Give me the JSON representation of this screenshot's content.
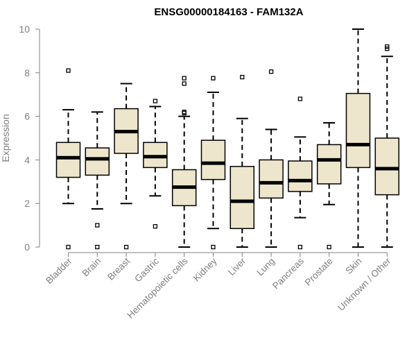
{
  "chart_data": {
    "type": "boxplot",
    "title": "ENSG00000184163 - FAM132A",
    "xlabel": "",
    "ylabel": "Expression",
    "ylim": [
      0,
      10
    ],
    "yticks": [
      0,
      2,
      4,
      6,
      8,
      10
    ],
    "colors": {
      "box_fill": "#ede6cc",
      "stroke": "#000000",
      "axis": "#808080",
      "tick_label": "#808080"
    },
    "categories": [
      "Bladder",
      "Brain",
      "Breast",
      "Gastric",
      "Hematopoietic cells",
      "Kidney",
      "Liver",
      "Lung",
      "Pancreas",
      "Prostate",
      "Skin",
      "Unknown / Other"
    ],
    "boxes": [
      {
        "name": "Bladder",
        "whisker_low": 2.0,
        "q1": 3.2,
        "median": 4.1,
        "q3": 4.8,
        "whisker_high": 6.3,
        "outliers": [
          0.0,
          8.1
        ]
      },
      {
        "name": "Brain",
        "whisker_low": 1.75,
        "q1": 3.3,
        "median": 4.05,
        "q3": 4.55,
        "whisker_high": 6.2,
        "outliers": [
          0.0,
          1.0
        ]
      },
      {
        "name": "Breast",
        "whisker_low": 2.0,
        "q1": 4.3,
        "median": 5.3,
        "q3": 6.35,
        "whisker_high": 7.5,
        "outliers": [
          0.0
        ]
      },
      {
        "name": "Gastric",
        "whisker_low": 2.35,
        "q1": 3.65,
        "median": 4.15,
        "q3": 4.8,
        "whisker_high": 6.45,
        "outliers": [
          0.95,
          6.7
        ]
      },
      {
        "name": "Hematopoietic cells",
        "whisker_low": 0.0,
        "q1": 1.9,
        "median": 2.75,
        "q3": 3.55,
        "whisker_high": 6.0,
        "outliers": [
          6.2,
          6.15,
          7.5,
          7.75
        ]
      },
      {
        "name": "Kidney",
        "whisker_low": 0.85,
        "q1": 3.1,
        "median": 3.85,
        "q3": 4.9,
        "whisker_high": 7.1,
        "outliers": [
          0.0,
          7.75
        ]
      },
      {
        "name": "Liver",
        "whisker_low": 0.0,
        "q1": 0.85,
        "median": 2.1,
        "q3": 3.7,
        "whisker_high": 5.9,
        "outliers": [
          7.8
        ]
      },
      {
        "name": "Lung",
        "whisker_low": 0.0,
        "q1": 2.25,
        "median": 2.95,
        "q3": 4.0,
        "whisker_high": 5.4,
        "outliers": [
          8.05
        ]
      },
      {
        "name": "Pancreas",
        "whisker_low": 1.35,
        "q1": 2.55,
        "median": 3.05,
        "q3": 3.95,
        "whisker_high": 5.05,
        "outliers": [
          0.0,
          6.8
        ]
      },
      {
        "name": "Prostate",
        "whisker_low": 1.95,
        "q1": 2.9,
        "median": 4.0,
        "q3": 4.7,
        "whisker_high": 5.7,
        "outliers": [
          0.0
        ]
      },
      {
        "name": "Skin",
        "whisker_low": 0.0,
        "q1": 3.65,
        "median": 4.7,
        "q3": 7.05,
        "whisker_high": 10.0,
        "outliers": []
      },
      {
        "name": "Unknown / Other",
        "whisker_low": 0.0,
        "q1": 2.4,
        "median": 3.6,
        "q3": 5.0,
        "whisker_high": 8.75,
        "outliers": [
          9.1,
          9.2
        ]
      }
    ]
  }
}
